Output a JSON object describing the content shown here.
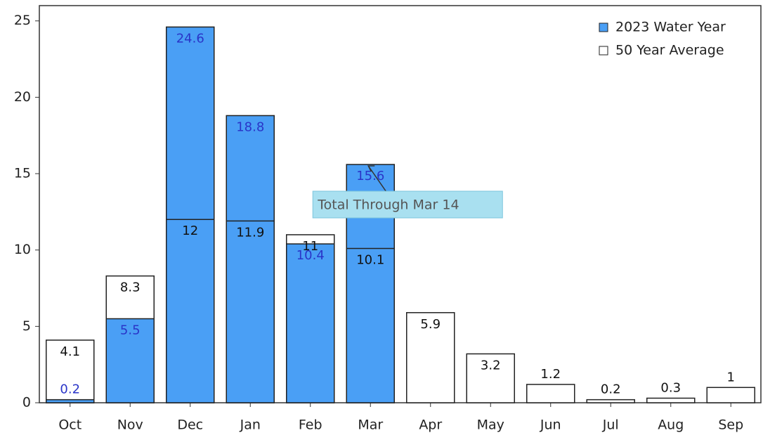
{
  "chart_data": {
    "type": "bar",
    "categories": [
      "Oct",
      "Nov",
      "Dec",
      "Jan",
      "Feb",
      "Mar",
      "Apr",
      "May",
      "Jun",
      "Jul",
      "Aug",
      "Sep"
    ],
    "series": [
      {
        "name": "2023 Water Year",
        "color": "#4a9ff5",
        "label_color": "#2a35c8",
        "values": [
          0.2,
          5.5,
          24.6,
          18.8,
          10.4,
          15.6,
          null,
          null,
          null,
          null,
          null,
          null
        ]
      },
      {
        "name": "50 Year Average",
        "color": "#ffffff",
        "label_color": "#111111",
        "values": [
          4.1,
          8.3,
          12,
          11.9,
          11,
          10.1,
          5.9,
          3.2,
          1.2,
          0.2,
          0.3,
          1
        ]
      }
    ],
    "ylim": [
      0,
      26
    ],
    "yticks": [
      0,
      5,
      10,
      15,
      20,
      25
    ],
    "annotation": {
      "text": "Total Through Mar 14",
      "category_index": 5
    },
    "legend": "upper right"
  }
}
